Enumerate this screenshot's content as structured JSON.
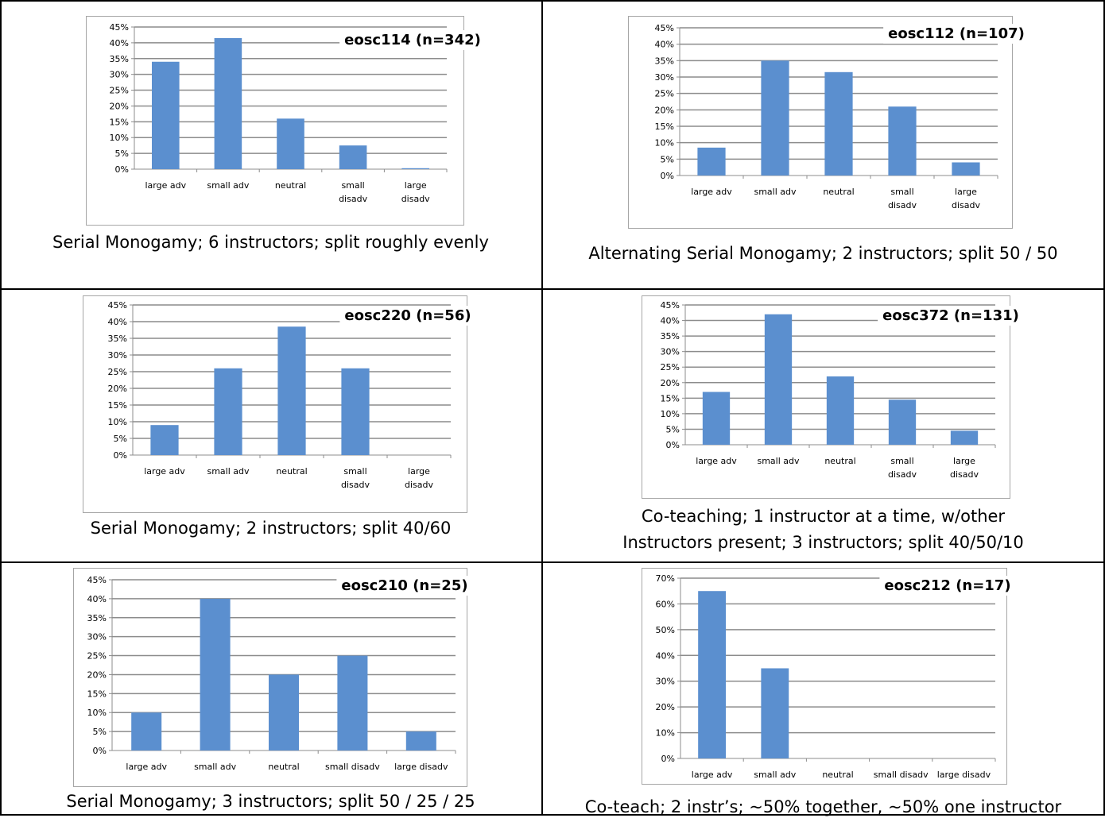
{
  "chart_data": [
    {
      "type": "bar",
      "title": "eosc114  (n=342)",
      "categories": [
        "large adv",
        "small adv",
        "neutral",
        "small disadv",
        "large disadv"
      ],
      "values": [
        34,
        41.5,
        16,
        7.5,
        0.3
      ],
      "ylim": [
        0,
        45
      ],
      "yticks": [
        "0%",
        "5%",
        "10%",
        "15%",
        "20%",
        "25%",
        "30%",
        "35%",
        "40%",
        "45%"
      ],
      "grid": true,
      "caption": "Serial Monogamy;  6 instructors; split roughly evenly"
    },
    {
      "type": "bar",
      "title": "eosc112  (n=107)",
      "categories": [
        "large adv",
        "small adv",
        "neutral",
        "small disadv",
        "large disadv"
      ],
      "values": [
        8.5,
        35,
        31.5,
        21,
        4
      ],
      "ylim": [
        0,
        45
      ],
      "yticks": [
        "0%",
        "5%",
        "10%",
        "15%",
        "20%",
        "25%",
        "30%",
        "35%",
        "40%",
        "45%"
      ],
      "grid": true,
      "caption": "Alternating Serial Monogamy;  2 instructors; split 50 / 50"
    },
    {
      "type": "bar",
      "title": "eosc220  (n=56)",
      "categories": [
        "large adv",
        "small adv",
        "neutral",
        "small disadv",
        "large disadv"
      ],
      "values": [
        9,
        26,
        38.5,
        26,
        0
      ],
      "ylim": [
        0,
        45
      ],
      "yticks": [
        "0%",
        "5%",
        "10%",
        "15%",
        "20%",
        "25%",
        "30%",
        "35%",
        "40%",
        "45%"
      ],
      "grid": true,
      "caption": "Serial Monogamy; 2 instructors; split 40/60"
    },
    {
      "type": "bar",
      "title": "eosc372  (n=131)",
      "categories": [
        "large adv",
        "small adv",
        "neutral",
        "small disadv",
        "large disadv"
      ],
      "values": [
        17,
        42,
        22,
        14.5,
        4.5
      ],
      "ylim": [
        0,
        45
      ],
      "yticks": [
        "0%",
        "5%",
        "10%",
        "15%",
        "20%",
        "25%",
        "30%",
        "35%",
        "40%",
        "45%"
      ],
      "grid": true,
      "caption_lines": [
        "Co-teaching; 1 instructor at a time, w/other",
        "Instructors present;  3 instructors; split 40/50/10"
      ]
    },
    {
      "type": "bar",
      "title": "eosc210  (n=25)",
      "categories": [
        "large adv",
        "small adv",
        "neutral",
        "small disadv",
        "large disadv"
      ],
      "values": [
        10,
        40,
        20,
        25,
        5
      ],
      "ylim": [
        0,
        45
      ],
      "yticks": [
        "0%",
        "5%",
        "10%",
        "15%",
        "20%",
        "25%",
        "30%",
        "35%",
        "40%",
        "45%"
      ],
      "grid": true,
      "caption": "Serial Monogamy;  3 instructors; split 50 / 25 / 25"
    },
    {
      "type": "bar",
      "title": "eosc212  (n=17)",
      "categories": [
        "large adv",
        "small adv",
        "neutral",
        "small disadv",
        "large disadv"
      ],
      "values": [
        65,
        35,
        0,
        0,
        0
      ],
      "ylim": [
        0,
        70
      ],
      "yticks": [
        "0%",
        "10%",
        "20%",
        "30%",
        "40%",
        "50%",
        "60%",
        "70%"
      ],
      "grid": true,
      "caption": "Co-teach;  2 instr’s; ~50% together, ~50% one instructor"
    }
  ],
  "colors": {
    "bar": "#5b8fcf",
    "grid": "#8c8c8c",
    "axis": "#8c8c8c",
    "frame": "#a6a6a6"
  }
}
